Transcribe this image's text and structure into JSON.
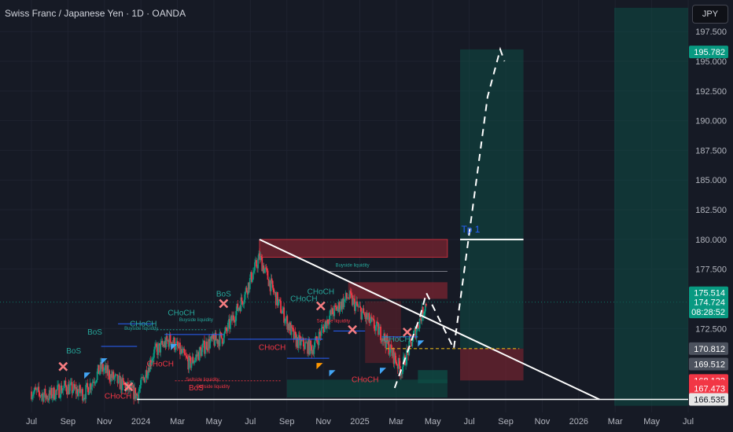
{
  "title": "Swiss Franc / Japanese Yen · 1D · OANDA",
  "currency_button": "JPY",
  "chart_data": {
    "type": "candlestick",
    "x_tick_labels": [
      "Jul",
      "Sep",
      "Nov",
      "2024",
      "Mar",
      "May",
      "Jul",
      "Sep",
      "Nov",
      "2025",
      "Mar",
      "May",
      "Jul",
      "Sep",
      "Nov",
      "2026",
      "Mar",
      "May",
      "Jul"
    ],
    "y_tick_labels": [
      "197.500",
      "195.000",
      "192.500",
      "190.000",
      "187.500",
      "185.000",
      "182.500",
      "180.000",
      "177.500",
      "172.500"
    ],
    "ylim": [
      166.0,
      199.5
    ],
    "price_tags": [
      {
        "value": 195.782,
        "label": "195.782",
        "color": "#089981"
      },
      {
        "value": 175.514,
        "label": "175.514",
        "color": "#089981"
      },
      {
        "value": 174.724,
        "label": "174.724",
        "color": "#089981"
      },
      {
        "value": 173.9,
        "label": "08:28:52",
        "color": "#089981"
      },
      {
        "value": 170.812,
        "label": "170.812",
        "color": "#4c525e"
      },
      {
        "value": 169.512,
        "label": "169.512",
        "color": "#4c525e"
      },
      {
        "value": 168.132,
        "label": "168.132",
        "color": "#f23645"
      },
      {
        "value": 167.644,
        "label": "167.644",
        "color": "#f23645"
      },
      {
        "value": 167.473,
        "label": "167.473",
        "color": "#f23645"
      },
      {
        "value": 166.535,
        "label": "166.535",
        "color": "#e6e6e6"
      }
    ],
    "close_path": [
      {
        "x": 2023.42,
        "y": 167.2
      },
      {
        "x": 2023.5,
        "y": 166.8
      },
      {
        "x": 2023.58,
        "y": 167.6
      },
      {
        "x": 2023.67,
        "y": 167.0
      },
      {
        "x": 2023.75,
        "y": 169.2
      },
      {
        "x": 2023.83,
        "y": 168.0
      },
      {
        "x": 2023.92,
        "y": 166.9
      },
      {
        "x": 2024.0,
        "y": 170.5
      },
      {
        "x": 2024.08,
        "y": 171.6
      },
      {
        "x": 2024.17,
        "y": 169.5
      },
      {
        "x": 2024.25,
        "y": 171.2
      },
      {
        "x": 2024.33,
        "y": 171.8
      },
      {
        "x": 2024.42,
        "y": 175.0
      },
      {
        "x": 2024.5,
        "y": 178.5
      },
      {
        "x": 2024.58,
        "y": 175.0
      },
      {
        "x": 2024.67,
        "y": 171.5
      },
      {
        "x": 2024.75,
        "y": 170.8
      },
      {
        "x": 2024.83,
        "y": 173.5
      },
      {
        "x": 2024.92,
        "y": 175.2
      },
      {
        "x": 2025.0,
        "y": 173.5
      },
      {
        "x": 2025.08,
        "y": 172.0
      },
      {
        "x": 2025.17,
        "y": 169.0
      },
      {
        "x": 2025.25,
        "y": 172.8
      },
      {
        "x": 2025.29,
        "y": 174.724
      }
    ],
    "annotations": [
      {
        "text": "Tp 1",
        "x": 2025.5,
        "y": 180.6,
        "color": "#2962ff",
        "size": 12
      },
      {
        "text": "BoS",
        "x": 2023.62,
        "y": 170.4,
        "color": "#26a69a",
        "size": 10
      },
      {
        "text": "BoS",
        "x": 2023.72,
        "y": 172.0,
        "color": "#26a69a",
        "size": 10
      },
      {
        "text": "BoS",
        "x": 2024.33,
        "y": 175.2,
        "color": "#26a69a",
        "size": 10
      },
      {
        "text": "CHoCH",
        "x": 2023.95,
        "y": 172.7,
        "color": "#26a69a",
        "size": 10
      },
      {
        "text": "CHoCH",
        "x": 2024.13,
        "y": 173.6,
        "color": "#26a69a",
        "size": 10
      },
      {
        "text": "CHoCH",
        "x": 2024.71,
        "y": 174.8,
        "color": "#26a69a",
        "size": 10
      },
      {
        "text": "CHoCH",
        "x": 2024.79,
        "y": 175.4,
        "color": "#26a69a",
        "size": 10
      },
      {
        "text": "CHoCH",
        "x": 2025.15,
        "y": 171.4,
        "color": "#26a69a",
        "size": 10
      },
      {
        "text": "CHoCH",
        "x": 2024.56,
        "y": 170.7,
        "color": "#f23645",
        "size": 10
      },
      {
        "text": "CHoCH",
        "x": 2024.03,
        "y": 169.3,
        "color": "#f23645",
        "size": 10
      },
      {
        "text": "CHoCH",
        "x": 2023.83,
        "y": 166.6,
        "color": "#f23645",
        "size": 10
      },
      {
        "text": "CHoCH",
        "x": 2025.0,
        "y": 168.0,
        "color": "#f23645",
        "size": 10
      },
      {
        "text": "BoS",
        "x": 2024.2,
        "y": 167.3,
        "color": "#f23645",
        "size": 10
      },
      {
        "text": "Buyside liquidity",
        "x": 2024.94,
        "y": 177.7,
        "color": "#26a69a",
        "size": 6
      },
      {
        "text": "Buyside liquidity",
        "x": 2023.94,
        "y": 172.4,
        "color": "#26a69a",
        "size": 6
      },
      {
        "text": "Buyside liquidity",
        "x": 2024.2,
        "y": 173.1,
        "color": "#26a69a",
        "size": 6
      },
      {
        "text": "Sellside liquidity",
        "x": 2024.85,
        "y": 173.0,
        "color": "#f23645",
        "size": 6
      },
      {
        "text": "Sellside liquidity",
        "x": 2024.23,
        "y": 168.1,
        "color": "#f23645",
        "size": 6
      },
      {
        "text": "Sellside liquidity",
        "x": 2024.28,
        "y": 167.5,
        "color": "#f23645",
        "size": 6
      }
    ]
  }
}
